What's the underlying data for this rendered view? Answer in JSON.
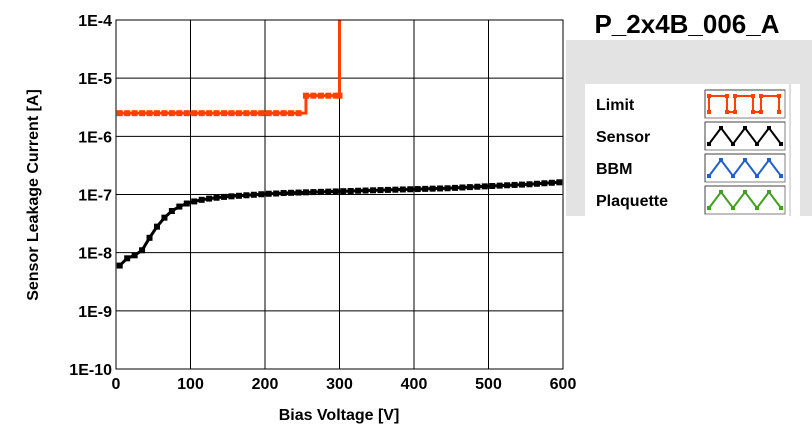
{
  "chart_data": {
    "type": "line",
    "title": "P_2x4B_006_A",
    "xlabel": "Bias Voltage [V]",
    "ylabel": "Sensor Leakage Current [A]",
    "xlim": [
      0,
      600
    ],
    "ylim": [
      1e-10,
      0.0001
    ],
    "yscale": "log",
    "x_ticks": [
      0,
      100,
      200,
      300,
      400,
      500,
      600
    ],
    "x_tick_labels": [
      "0",
      "100",
      "200",
      "300",
      "400",
      "500",
      "600"
    ],
    "y_ticks": [
      1e-10,
      1e-09,
      1e-08,
      1e-07,
      1e-06,
      1e-05,
      0.0001
    ],
    "y_tick_labels": [
      "1E-10",
      "1E-9",
      "1E-8",
      "1E-7",
      "1E-6",
      "1E-5",
      "1E-4"
    ],
    "grid": true,
    "legend_position": "right",
    "series": [
      {
        "name": "Limit",
        "color": "#ff4000",
        "step": true,
        "x": [
          5,
          15,
          25,
          35,
          45,
          55,
          65,
          75,
          85,
          95,
          105,
          115,
          125,
          135,
          145,
          155,
          165,
          175,
          185,
          195,
          205,
          215,
          225,
          235,
          245,
          255,
          265,
          275,
          285,
          295,
          300,
          300
        ],
        "y": [
          2.5e-06,
          2.5e-06,
          2.5e-06,
          2.5e-06,
          2.5e-06,
          2.5e-06,
          2.5e-06,
          2.5e-06,
          2.5e-06,
          2.5e-06,
          2.5e-06,
          2.5e-06,
          2.5e-06,
          2.5e-06,
          2.5e-06,
          2.5e-06,
          2.5e-06,
          2.5e-06,
          2.5e-06,
          2.5e-06,
          2.5e-06,
          2.5e-06,
          2.5e-06,
          2.5e-06,
          2.5e-06,
          5e-06,
          5e-06,
          5e-06,
          5e-06,
          5e-06,
          5e-06,
          0.0001
        ]
      },
      {
        "name": "Sensor",
        "color": "#000000",
        "x": [
          5,
          15,
          25,
          35,
          45,
          55,
          65,
          75,
          85,
          95,
          105,
          115,
          125,
          135,
          145,
          155,
          165,
          175,
          185,
          195,
          205,
          215,
          225,
          235,
          245,
          255,
          265,
          275,
          285,
          295,
          305,
          315,
          325,
          335,
          345,
          355,
          365,
          375,
          385,
          395,
          405,
          415,
          425,
          435,
          445,
          455,
          465,
          475,
          485,
          495,
          505,
          515,
          525,
          535,
          545,
          555,
          565,
          575,
          585,
          595
        ],
        "y": [
          6e-09,
          8e-09,
          9e-09,
          1.1e-08,
          1.8e-08,
          2.8e-08,
          4e-08,
          5.2e-08,
          6.2e-08,
          7e-08,
          7.6e-08,
          8.1e-08,
          8.5e-08,
          8.8e-08,
          9.1e-08,
          9.3e-08,
          9.5e-08,
          9.7e-08,
          9.9e-08,
          1.01e-07,
          1.03e-07,
          1.04e-07,
          1.06e-07,
          1.07e-07,
          1.08e-07,
          1.09e-07,
          1.1e-07,
          1.11e-07,
          1.12e-07,
          1.13e-07,
          1.14e-07,
          1.15e-07,
          1.16e-07,
          1.17e-07,
          1.18e-07,
          1.19e-07,
          1.2e-07,
          1.21e-07,
          1.22e-07,
          1.23e-07,
          1.24e-07,
          1.25e-07,
          1.26e-07,
          1.27e-07,
          1.28e-07,
          1.3e-07,
          1.32e-07,
          1.34e-07,
          1.36e-07,
          1.38e-07,
          1.4e-07,
          1.42e-07,
          1.44e-07,
          1.46e-07,
          1.48e-07,
          1.5e-07,
          1.53e-07,
          1.56e-07,
          1.59e-07,
          1.62e-07
        ]
      },
      {
        "name": "BBM",
        "color": "#1f5fd0",
        "x": [],
        "y": []
      },
      {
        "name": "Plaquette",
        "color": "#40a020",
        "x": [],
        "y": []
      }
    ]
  }
}
